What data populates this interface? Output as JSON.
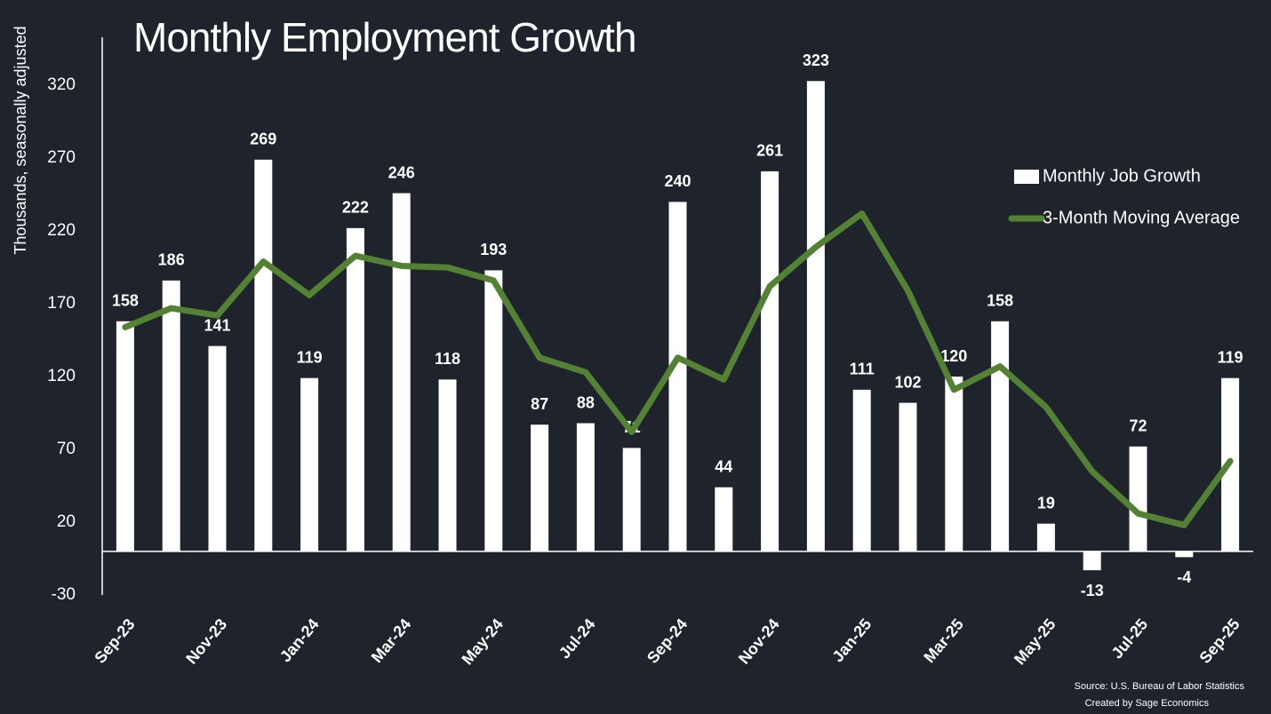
{
  "chart_data": {
    "type": "bar",
    "title": "Monthly Employment Growth",
    "y_label": "Thousands, seasonally adjusted",
    "categories": [
      "Sep-23",
      null,
      "Nov-23",
      null,
      "Jan-24",
      null,
      "Mar-24",
      null,
      "May-24",
      null,
      "Jul-24",
      null,
      "Sep-24",
      null,
      "Nov-24",
      null,
      "Jan-25",
      null,
      "Mar-25",
      null,
      "May-25",
      null,
      "Jul-25",
      null,
      "Sep-25"
    ],
    "series": [
      {
        "name": "Monthly Job Growth",
        "type": "bar",
        "color": "#ffffff",
        "values": [
          158,
          186,
          141,
          269,
          119,
          222,
          246,
          118,
          193,
          87,
          88,
          71,
          240,
          44,
          261,
          323,
          111,
          102,
          120,
          158,
          19,
          -13,
          72,
          -4,
          119
        ]
      },
      {
        "name": "3-Month Moving Average",
        "type": "line",
        "color": "#548235",
        "values": [
          154,
          167,
          162,
          199,
          176,
          203,
          196,
          195,
          186,
          133,
          123,
          82,
          133,
          118,
          182,
          209,
          232,
          179,
          111,
          127,
          99,
          55,
          26,
          18,
          62
        ]
      }
    ],
    "ylim": [
      -30,
      350
    ],
    "yticks": [
      -30,
      20,
      70,
      120,
      170,
      220,
      270,
      320
    ],
    "grid": false,
    "legend": "right",
    "source": [
      "Source: U.S. Bureau of Labor Statistics",
      "Created by Sage Economics"
    ]
  }
}
